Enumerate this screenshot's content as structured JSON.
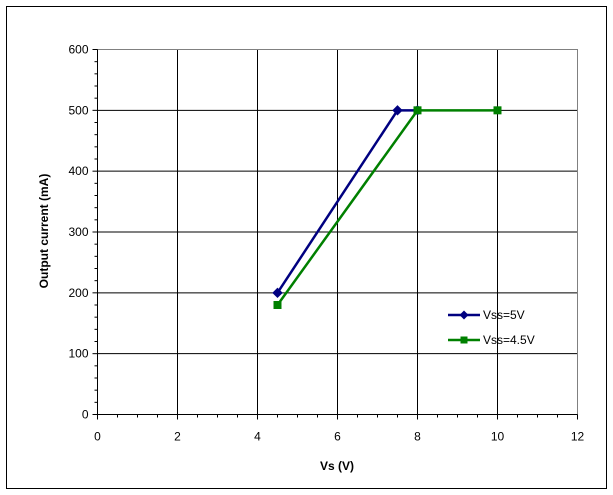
{
  "chart_data": {
    "type": "line",
    "title": "",
    "xlabel": "Vs (V)",
    "ylabel": "Output current (mA)",
    "xlim": [
      0,
      12
    ],
    "ylim": [
      0,
      600
    ],
    "x_ticks": [
      "0",
      "2",
      "4",
      "6",
      "8",
      "10",
      "12"
    ],
    "y_ticks": [
      "0",
      "100",
      "200",
      "300",
      "400",
      "500",
      "600"
    ],
    "grid": true,
    "legend_position": "right",
    "series": [
      {
        "name": "Vss=5V",
        "color": "#000080",
        "marker": "diamond",
        "points": [
          [
            4.5,
            200
          ],
          [
            7.5,
            500
          ],
          [
            8,
            500
          ]
        ]
      },
      {
        "name": "Vss=4.5V",
        "color": "#008000",
        "marker": "square",
        "points": [
          [
            4.5,
            180
          ],
          [
            8,
            500
          ],
          [
            10,
            500
          ]
        ]
      }
    ]
  }
}
